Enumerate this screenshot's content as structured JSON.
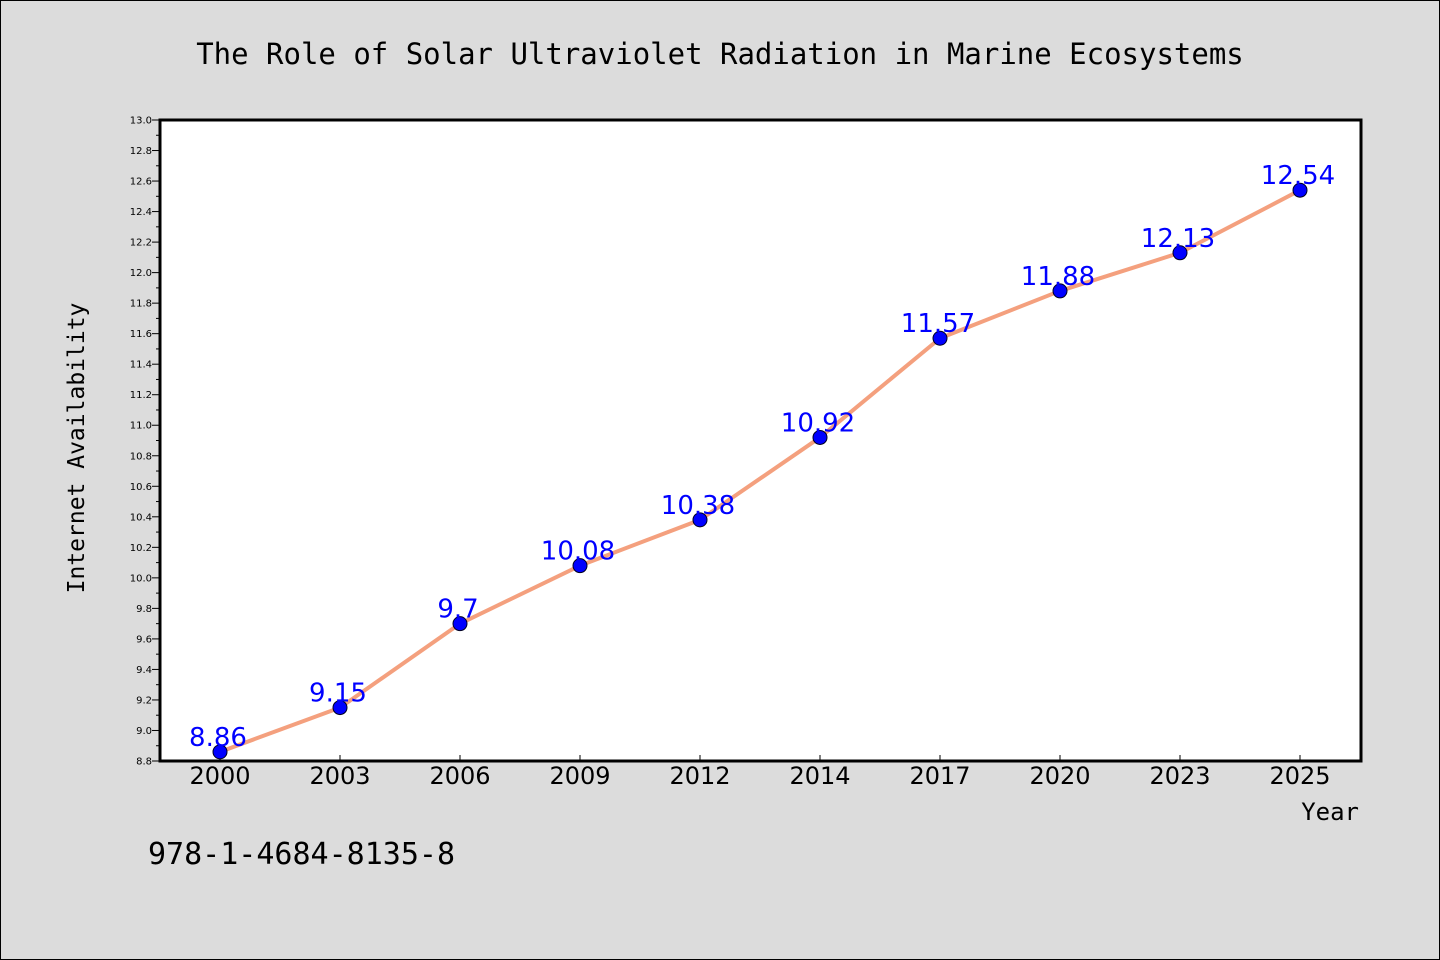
{
  "chart_data": {
    "type": "line",
    "title": "The Role of Solar Ultraviolet Radiation in Marine Ecosystems",
    "xlabel": "Year",
    "ylabel": "Internet Availability",
    "categories": [
      "2000",
      "2003",
      "2006",
      "2009",
      "2012",
      "2014",
      "2017",
      "2020",
      "2023",
      "2025"
    ],
    "series": [
      {
        "values": [
          8.86,
          9.15,
          9.7,
          10.08,
          10.38,
          10.92,
          11.57,
          11.88,
          12.13,
          12.54
        ],
        "data_labels": [
          "8.86",
          "9.15",
          "9.7",
          "10.08",
          "10.38",
          "10.92",
          "11.57",
          "11.88",
          "12.13",
          "12.54"
        ]
      }
    ],
    "ylim": [
      8.8,
      13.0
    ],
    "yticks": [
      "8.8",
      "9.0",
      "9.2",
      "9.4",
      "9.6",
      "9.8",
      "10.0",
      "10.2",
      "10.4",
      "10.6",
      "10.8",
      "11.0",
      "11.2",
      "11.4",
      "11.6",
      "11.8",
      "12.0",
      "12.2",
      "12.4",
      "12.6",
      "12.8",
      "13.0"
    ],
    "grid": false,
    "legend": "none",
    "colors": {
      "line": "#f4a07e",
      "marker": "#0000ff",
      "data_label": "#0000ff",
      "background": "#dcdcdc",
      "plot_background": "#ffffff"
    }
  },
  "footer": {
    "isbn": "978-1-4684-8135-8"
  }
}
